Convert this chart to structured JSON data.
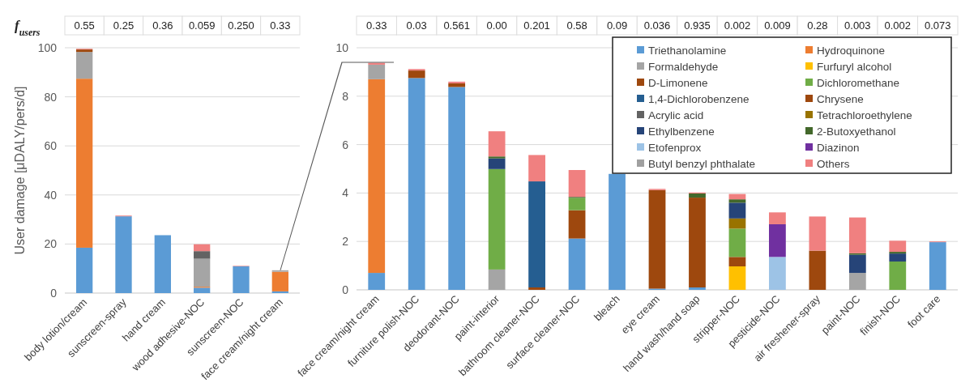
{
  "chart_data": [
    {
      "type": "bar",
      "stacked": true,
      "ylabel": "User damage  [μDALY/pers/d]",
      "ylim": [
        0,
        100
      ],
      "yticks": [
        0,
        20,
        40,
        60,
        80,
        100
      ],
      "grid": "y",
      "legend": false,
      "categories": [
        "body lotion/cream",
        "sunscreen-spray",
        "hand cream",
        "wood adhesive-NOC",
        "sunscreen-NOC",
        "face cream/night cream"
      ],
      "annotations": [
        "f$_{users}$",
        "0.55",
        "0.25",
        "0.36",
        "0.059",
        "0.250",
        "0.33"
      ],
      "series": [
        {
          "color": "#5b9bd5",
          "values": [
            18.5,
            31.3,
            23.6,
            2.2,
            10.9,
            0.7
          ]
        },
        {
          "color": "#ed7d31",
          "values": [
            68.9,
            null,
            null,
            0.4,
            null,
            8.0
          ]
        },
        {
          "color": "#a5a5a5",
          "values": [
            10.9,
            null,
            null,
            11.4,
            null,
            0.6
          ]
        },
        {
          "color": "#9e480e",
          "values": [
            1.0,
            null,
            null,
            null,
            null,
            null
          ]
        },
        {
          "color": "#636363",
          "values": [
            null,
            null,
            null,
            3.1,
            null,
            null
          ]
        },
        {
          "color": "#f08080",
          "values": [
            0.3,
            0.3,
            null,
            2.8,
            0.2,
            null
          ]
        }
      ]
    },
    {
      "type": "bar",
      "stacked": true,
      "ylim": [
        0,
        10
      ],
      "yticks": [
        0,
        2,
        4,
        6,
        8,
        10
      ],
      "grid": "y",
      "legend": "top right",
      "categories": [
        "face cream/night cream",
        "furniture polish-NOC",
        "deodorant-NOC",
        "paint-interior",
        "bathroom cleaner-NOC",
        "surface cleaner-NOC",
        "bleach",
        "eye cream",
        "hand wash/hand soap",
        "stripper-NOC",
        "pesticide-NOC",
        "air freshener-spray",
        "paint-NOC",
        "finish-NOC",
        "foot care"
      ],
      "annotations": [
        "0.33",
        "0.03",
        "0.561",
        "0.00",
        "0.201",
        "0.58",
        "0.09",
        "0.036",
        "0.935",
        "0.002",
        "0.009",
        "0.28",
        "0.003",
        "0.002",
        "0.073"
      ],
      "series": [
        {
          "name": "Triethanolamine",
          "color": "#5b9bd5",
          "values": [
            0.7,
            8.75,
            8.38,
            null,
            null,
            2.12,
            4.79,
            0.05,
            0.1,
            null,
            null,
            null,
            null,
            null,
            1.97
          ]
        },
        {
          "name": "Hydroquinone",
          "color": "#ed7d31",
          "values": [
            8.0,
            null,
            null,
            null,
            null,
            null,
            null,
            null,
            null,
            null,
            null,
            null,
            null,
            null,
            null
          ]
        },
        {
          "name": "Formaldehyde",
          "color": "#a5a5a5",
          "values": [
            0.6,
            null,
            null,
            0.84,
            null,
            null,
            null,
            null,
            null,
            null,
            null,
            null,
            0.7,
            null,
            null
          ]
        },
        {
          "name": "Furfuryl alcohol",
          "color": "#ffc000",
          "values": [
            null,
            null,
            null,
            null,
            null,
            null,
            null,
            null,
            null,
            0.97,
            null,
            null,
            null,
            null,
            null
          ]
        },
        {
          "name": "D-Limonene",
          "color": "#9e480e",
          "values": [
            null,
            0.31,
            0.15,
            null,
            0.1,
            1.17,
            null,
            null,
            3.71,
            0.39,
            null,
            1.62,
            null,
            null,
            null
          ]
        },
        {
          "name": "Dichloromethane",
          "color": "#70ad47",
          "values": [
            null,
            null,
            null,
            4.15,
            null,
            0.51,
            null,
            null,
            null,
            1.17,
            null,
            null,
            null,
            1.17,
            null
          ]
        },
        {
          "name": "1,4-Dichlorobenzene",
          "color": "#255e91",
          "values": [
            null,
            null,
            null,
            null,
            4.38,
            null,
            null,
            null,
            null,
            null,
            null,
            null,
            null,
            null,
            null
          ]
        },
        {
          "name": "Chrysene",
          "color": "#9e480e",
          "values": [
            null,
            null,
            null,
            null,
            null,
            null,
            null,
            4.07,
            null,
            null,
            null,
            null,
            null,
            null,
            null
          ]
        },
        {
          "name": "Acrylic acid",
          "color": "#636363",
          "values": [
            null,
            null,
            null,
            null,
            null,
            null,
            null,
            null,
            null,
            null,
            null,
            null,
            null,
            null,
            null
          ]
        },
        {
          "name": "Tetrachloroethylene",
          "color": "#997300",
          "values": [
            null,
            null,
            null,
            null,
            null,
            null,
            null,
            null,
            null,
            0.42,
            null,
            null,
            null,
            null,
            null
          ]
        },
        {
          "name": "Ethylbenzene",
          "color": "#264478",
          "values": [
            null,
            null,
            null,
            0.44,
            null,
            null,
            null,
            null,
            null,
            0.65,
            null,
            null,
            0.75,
            0.33,
            null
          ]
        },
        {
          "name": "2-Butoxyethanol",
          "color": "#43682b",
          "values": [
            null,
            null,
            null,
            0.08,
            null,
            0.04,
            null,
            null,
            0.17,
            0.14,
            null,
            null,
            0.06,
            0.07,
            null
          ]
        },
        {
          "name": "Etofenprox",
          "color": "#9dc3e6",
          "values": [
            null,
            null,
            null,
            null,
            null,
            null,
            null,
            null,
            null,
            null,
            1.36,
            null,
            null,
            null,
            null
          ]
        },
        {
          "name": "Diazinon",
          "color": "#7030a0",
          "values": [
            null,
            null,
            null,
            null,
            null,
            null,
            null,
            null,
            null,
            null,
            1.35,
            null,
            null,
            null,
            null
          ]
        },
        {
          "name": "Butyl benzyl phthalate",
          "color": "#a0a0a0",
          "values": [
            null,
            null,
            null,
            null,
            null,
            null,
            null,
            null,
            null,
            null,
            null,
            null,
            null,
            null,
            null
          ]
        },
        {
          "name": "Others",
          "color": "#f08080",
          "values": [
            0.08,
            0.06,
            0.07,
            1.04,
            1.09,
            1.11,
            null,
            0.05,
            0.04,
            0.22,
            0.49,
            1.41,
            1.48,
            0.46,
            0.03
          ]
        }
      ]
    }
  ]
}
